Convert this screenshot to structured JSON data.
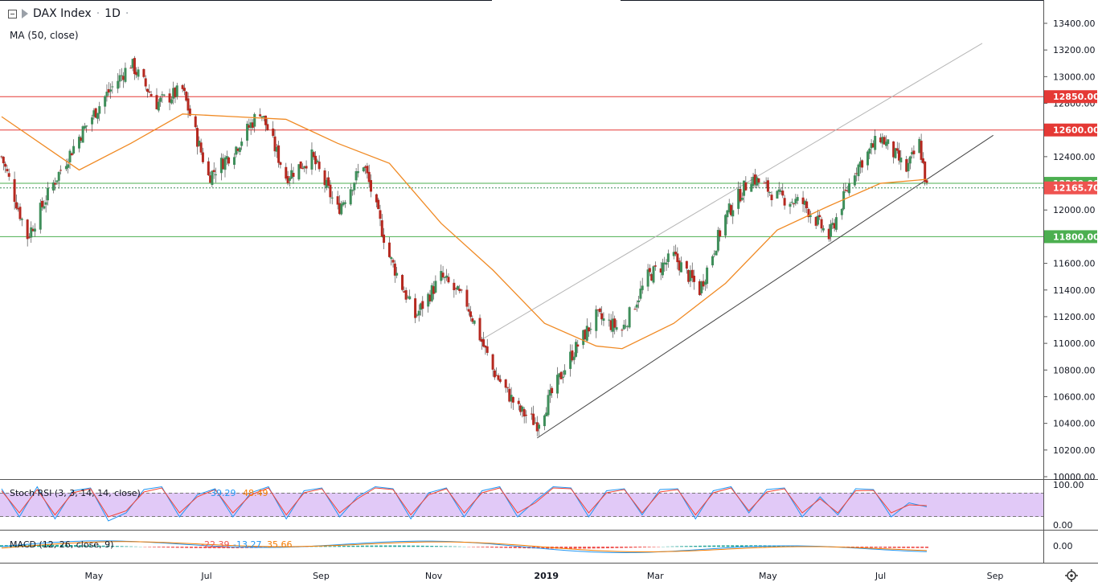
{
  "header": {
    "symbol": "DAX Index",
    "separator": "·",
    "interval": "1D",
    "dot": "·",
    "ma_label": "MA (50, close)"
  },
  "colors": {
    "up": "#26a69a",
    "down": "#ef5350",
    "candle_up": "#3e8e5a",
    "candle_down": "#b5281f",
    "ma": "#f08a24",
    "red_level": "#e53935",
    "green_level": "#4caf50",
    "trendline": "#444444",
    "channel": "#b5b5b5",
    "rsi_band": "#e1c9f7",
    "k_line": "#2196f3",
    "d_line": "#f44336",
    "macd_line": "#2196f3",
    "signal_line": "#f57c00"
  },
  "chart_data": [
    {
      "type": "candlestick",
      "title": "DAX Index · 1D",
      "ylim": [
        10000,
        13400
      ],
      "yticks": [
        "13400.00",
        "13200.00",
        "13000.00",
        "12800.00",
        "12600.00",
        "12400.00",
        "12200.00",
        "12000.00",
        "11800.00",
        "11600.00",
        "11400.00",
        "11200.00",
        "11000.00",
        "10800.00",
        "10600.00",
        "10400.00",
        "10200.00",
        "10000.00"
      ],
      "xticks": [
        "May",
        "Jul",
        "Sep",
        "Nov",
        "2019",
        "Mar",
        "May",
        "Jul",
        "Sep"
      ],
      "approx_closes": [
        {
          "date": "2018-03-12",
          "close": 12400
        },
        {
          "date": "2018-03-26",
          "close": 11800
        },
        {
          "date": "2018-04-09",
          "close": 12200
        },
        {
          "date": "2018-04-23",
          "close": 12550
        },
        {
          "date": "2018-05-07",
          "close": 12850
        },
        {
          "date": "2018-05-21",
          "close": 13100
        },
        {
          "date": "2018-06-04",
          "close": 12800
        },
        {
          "date": "2018-06-18",
          "close": 12900
        },
        {
          "date": "2018-07-02",
          "close": 12250
        },
        {
          "date": "2018-07-16",
          "close": 12450
        },
        {
          "date": "2018-07-30",
          "close": 12750
        },
        {
          "date": "2018-08-13",
          "close": 12250
        },
        {
          "date": "2018-08-27",
          "close": 12400
        },
        {
          "date": "2018-09-10",
          "close": 12000
        },
        {
          "date": "2018-09-24",
          "close": 12350
        },
        {
          "date": "2018-10-08",
          "close": 11650
        },
        {
          "date": "2018-10-22",
          "close": 11200
        },
        {
          "date": "2018-11-05",
          "close": 11500
        },
        {
          "date": "2018-11-19",
          "close": 11300
        },
        {
          "date": "2018-12-03",
          "close": 10800
        },
        {
          "date": "2018-12-17",
          "close": 10500
        },
        {
          "date": "2018-12-27",
          "close": 10400
        },
        {
          "date": "2019-01-14",
          "close": 10900
        },
        {
          "date": "2019-01-28",
          "close": 11200
        },
        {
          "date": "2019-02-11",
          "close": 11100
        },
        {
          "date": "2019-02-25",
          "close": 11500
        },
        {
          "date": "2019-03-11",
          "close": 11650
        },
        {
          "date": "2019-03-25",
          "close": 11400
        },
        {
          "date": "2019-04-08",
          "close": 11950
        },
        {
          "date": "2019-04-22",
          "close": 12250
        },
        {
          "date": "2019-05-06",
          "close": 12100
        },
        {
          "date": "2019-05-20",
          "close": 12050
        },
        {
          "date": "2019-06-03",
          "close": 11800
        },
        {
          "date": "2019-06-17",
          "close": 12300
        },
        {
          "date": "2019-07-01",
          "close": 12550
        },
        {
          "date": "2019-07-15",
          "close": 12300
        },
        {
          "date": "2019-07-22",
          "close": 12500
        },
        {
          "date": "2019-07-26",
          "close": 12165.7
        }
      ],
      "ma50_approx": [
        {
          "date": "2018-03-12",
          "value": 12700
        },
        {
          "date": "2018-04-23",
          "value": 12300
        },
        {
          "date": "2018-05-21",
          "value": 12500
        },
        {
          "date": "2018-06-18",
          "value": 12720
        },
        {
          "date": "2018-07-16",
          "value": 12700
        },
        {
          "date": "2018-08-13",
          "value": 12680
        },
        {
          "date": "2018-09-10",
          "value": 12500
        },
        {
          "date": "2018-10-08",
          "value": 12350
        },
        {
          "date": "2018-11-05",
          "value": 11900
        },
        {
          "date": "2018-12-03",
          "value": 11550
        },
        {
          "date": "2018-12-31",
          "value": 11150
        },
        {
          "date": "2019-01-28",
          "value": 10980
        },
        {
          "date": "2019-02-11",
          "value": 10960
        },
        {
          "date": "2019-03-11",
          "value": 11150
        },
        {
          "date": "2019-04-08",
          "value": 11450
        },
        {
          "date": "2019-05-06",
          "value": 11850
        },
        {
          "date": "2019-06-03",
          "value": 12030
        },
        {
          "date": "2019-07-01",
          "value": 12200
        },
        {
          "date": "2019-07-26",
          "value": 12230
        }
      ],
      "horizontal_levels": [
        {
          "value": 12850,
          "label": "12850.00",
          "color": "red"
        },
        {
          "value": 12600,
          "label": "12600.00",
          "color": "red"
        },
        {
          "value": 12200,
          "label": "12200.00",
          "color": "green"
        },
        {
          "value": 11800,
          "label": "11800.00",
          "color": "green"
        }
      ],
      "last_price": {
        "value": 12165.7,
        "label": "12165.70"
      },
      "trendlines": [
        {
          "name": "support",
          "from": {
            "date": "2018-12-27",
            "value": 10290
          },
          "to": {
            "date": "2019-08-31",
            "value": 12560
          }
        },
        {
          "name": "channel",
          "from": {
            "date": "2018-11-26",
            "value": 11020
          },
          "to": {
            "date": "2019-08-25",
            "value": 13250
          }
        }
      ]
    },
    {
      "type": "line",
      "title": "Stoch RSI (3, 3, 14, 14, close)",
      "values_label": [
        "39.29",
        "48.49"
      ],
      "ylim": [
        0,
        100
      ],
      "yticks": [
        "100.00",
        "0.00"
      ],
      "band": [
        20,
        80
      ],
      "series": [
        {
          "name": "K",
          "values": [
            90,
            20,
            95,
            15,
            85,
            92,
            10,
            30,
            88,
            95,
            20,
            75,
            90,
            20,
            80,
            95,
            15,
            85,
            92,
            20,
            70,
            95,
            90,
            15,
            80,
            92,
            20,
            85,
            95,
            20,
            60,
            95,
            92,
            20,
            85,
            90,
            25,
            88,
            90,
            15,
            85,
            95,
            30,
            88,
            92,
            20,
            70,
            25,
            90,
            88,
            20,
            55,
            45
          ]
        },
        {
          "name": "D",
          "values": [
            85,
            30,
            88,
            25,
            80,
            90,
            20,
            35,
            82,
            92,
            30,
            70,
            88,
            30,
            75,
            92,
            25,
            80,
            90,
            30,
            65,
            92,
            88,
            25,
            75,
            90,
            30,
            80,
            92,
            30,
            55,
            92,
            90,
            30,
            80,
            88,
            30,
            82,
            88,
            25,
            80,
            92,
            35,
            82,
            90,
            30,
            65,
            30,
            85,
            86,
            30,
            50,
            48
          ]
        }
      ]
    },
    {
      "type": "line",
      "title": "MACD (12, 26, close, 9)",
      "values_label": [
        "-22.39",
        "-13.27",
        "35.66"
      ],
      "yticks": [
        "0.00"
      ]
    }
  ]
}
